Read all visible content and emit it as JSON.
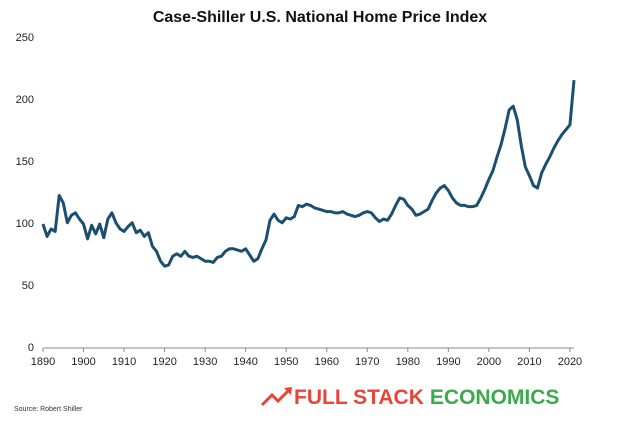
{
  "chart_data": {
    "type": "line",
    "title": "Case-Shiller U.S. National Home Price Index",
    "source": "Source: Robert Shiller",
    "brand": [
      "FULL STACK",
      "ECONOMICS"
    ],
    "brand_colors": [
      "#e8443a",
      "#3aaa4a"
    ],
    "color": "#1b4f72",
    "x": [
      1890,
      1891,
      1892,
      1893,
      1894,
      1895,
      1896,
      1897,
      1898,
      1899,
      1900,
      1901,
      1902,
      1903,
      1904,
      1905,
      1906,
      1907,
      1908,
      1909,
      1910,
      1911,
      1912,
      1913,
      1914,
      1915,
      1916,
      1917,
      1918,
      1919,
      1920,
      1921,
      1922,
      1923,
      1924,
      1925,
      1926,
      1927,
      1928,
      1929,
      1930,
      1931,
      1932,
      1933,
      1934,
      1935,
      1936,
      1937,
      1938,
      1939,
      1940,
      1941,
      1942,
      1943,
      1944,
      1945,
      1946,
      1947,
      1948,
      1949,
      1950,
      1951,
      1952,
      1953,
      1954,
      1955,
      1956,
      1957,
      1958,
      1959,
      1960,
      1961,
      1962,
      1963,
      1964,
      1965,
      1966,
      1967,
      1968,
      1969,
      1970,
      1971,
      1972,
      1973,
      1974,
      1975,
      1976,
      1977,
      1978,
      1979,
      1980,
      1981,
      1982,
      1983,
      1984,
      1985,
      1986,
      1987,
      1988,
      1989,
      1990,
      1991,
      1992,
      1993,
      1994,
      1995,
      1996,
      1997,
      1998,
      1999,
      2000,
      2001,
      2002,
      2003,
      2004,
      2005,
      2006,
      2007,
      2008,
      2009,
      2010,
      2011,
      2012,
      2013,
      2014,
      2015,
      2016,
      2017,
      2018,
      2019,
      2020,
      2021
    ],
    "values": [
      100,
      90,
      96,
      94,
      123,
      117,
      101,
      107,
      109,
      104,
      100,
      88,
      99,
      92,
      100,
      89,
      104,
      109,
      101,
      96,
      94,
      98,
      101,
      93,
      95,
      90,
      93,
      82,
      78,
      70,
      66,
      67,
      74,
      76,
      74,
      78,
      74,
      73,
      74,
      72,
      70,
      70,
      69,
      73,
      74,
      78,
      80,
      80,
      79,
      78,
      80,
      75,
      70,
      72,
      80,
      87,
      103,
      108,
      103,
      101,
      105,
      104,
      106,
      115,
      114,
      116,
      115,
      113,
      112,
      111,
      110,
      110,
      109,
      109,
      110,
      108,
      107,
      106,
      107,
      109,
      110,
      109,
      105,
      102,
      104,
      103,
      108,
      115,
      121,
      120,
      115,
      112,
      107,
      108,
      110,
      112,
      119,
      125,
      129,
      131,
      127,
      121,
      117,
      115,
      115,
      114,
      114,
      115,
      121,
      128,
      136,
      143,
      154,
      164,
      177,
      192,
      195,
      184,
      163,
      146,
      139,
      131,
      129,
      141,
      148,
      154,
      161,
      167,
      172,
      176,
      180,
      216
    ],
    "xlim": [
      1890,
      2021
    ],
    "ylim": [
      0,
      250
    ],
    "xticks": [
      1890,
      1900,
      1910,
      1920,
      1930,
      1940,
      1950,
      1960,
      1970,
      1980,
      1990,
      2000,
      2010,
      2020
    ],
    "yticks": [
      0,
      50,
      100,
      150,
      200,
      250
    ]
  }
}
